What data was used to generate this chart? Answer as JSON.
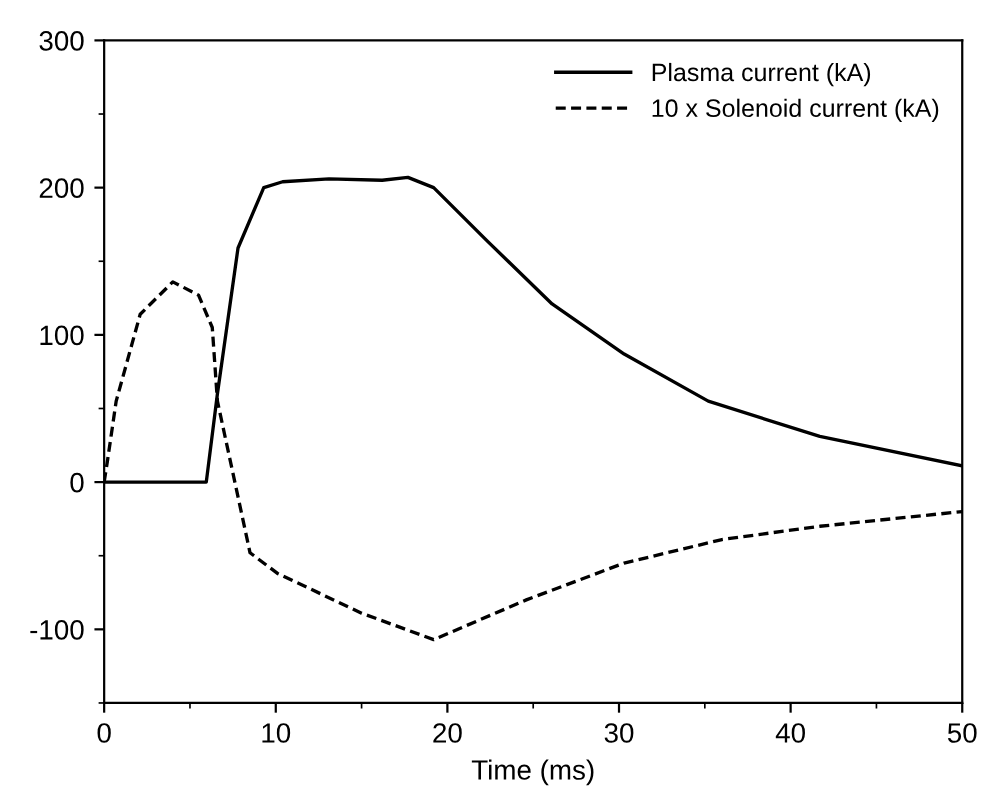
{
  "chart_data": {
    "type": "line",
    "xlabel": "Time (ms)",
    "xlim": [
      0,
      50
    ],
    "xticks": [
      0,
      10,
      20,
      30,
      40,
      50
    ],
    "ylim": [
      -150,
      300
    ],
    "yticks": [
      -100,
      0,
      100,
      200,
      300
    ],
    "legend": "top right",
    "grid": false,
    "marker": "none",
    "series": [
      {
        "name": "Plasma current (kA)",
        "color": "#000000",
        "line_style": "solid",
        "x": [
          0,
          5.95,
          6.6,
          7.8,
          9.3,
          10.4,
          13.1,
          16.2,
          17.7,
          19.2,
          22.3,
          26.1,
          30.3,
          35.2,
          41.7,
          50
        ],
        "values": [
          0,
          0,
          60,
          159,
          200,
          204,
          206,
          205,
          207,
          200,
          164,
          121,
          87,
          55,
          31,
          11
        ]
      },
      {
        "name": "10 x Solenoid current (kA)",
        "color": "#000000",
        "line_style": "dashed",
        "x": [
          0,
          0.2,
          0.7,
          2.1,
          4.0,
          5.5,
          6.3,
          6.6,
          8.5,
          10.1,
          15.0,
          19.2,
          24.6,
          30.3,
          36.0,
          41.7,
          50
        ],
        "values": [
          0,
          15,
          55,
          114,
          136,
          127,
          105,
          55,
          -48,
          -62,
          -89,
          -107,
          -80,
          -55,
          -39,
          -30,
          -20
        ]
      }
    ]
  }
}
